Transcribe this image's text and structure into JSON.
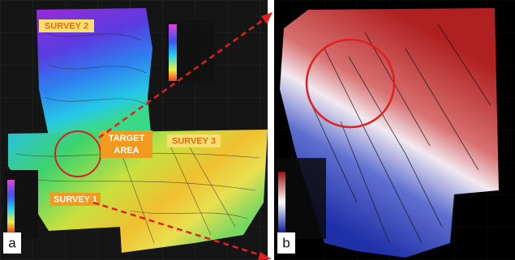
{
  "panels": {
    "a": {
      "letter": "a",
      "labels": [
        "SURVEY 2",
        "TARGET",
        "AREA",
        "SURVEY 3",
        "SURVEY 1"
      ]
    },
    "b": {
      "letter": "b"
    }
  }
}
